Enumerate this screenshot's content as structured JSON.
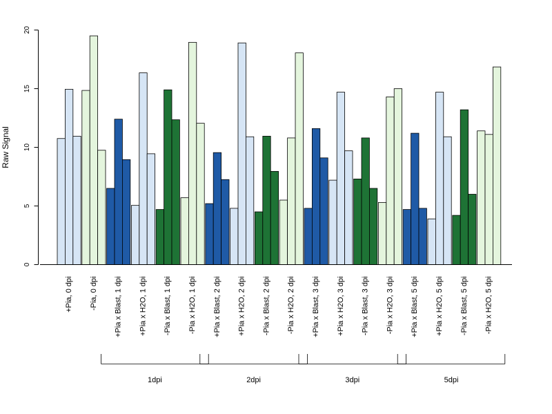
{
  "chart_data": {
    "type": "bar",
    "ylabel": "Raw Signal",
    "ylim": [
      0,
      20
    ],
    "yticks": [
      0,
      5,
      10,
      15,
      20
    ],
    "grid": false,
    "colors": {
      "light_blue": "#d6e5f5",
      "dark_blue": "#1f5aa6",
      "dark_green": "#1e7335",
      "light_green": "#e4f5dd"
    },
    "categories": [
      {
        "label": "+Pia, 0 dpi",
        "color": "light_blue",
        "values": [
          10.75,
          14.95,
          10.95
        ]
      },
      {
        "label": "-Pia, 0 dpi",
        "color": "light_green",
        "values": [
          14.85,
          19.5,
          9.75
        ]
      },
      {
        "label": "+Pia x Blast, 1 dpi",
        "color": "dark_blue",
        "values": [
          6.5,
          12.4,
          8.95
        ]
      },
      {
        "label": "+Pia x H2O, 1 dpi",
        "color": "light_blue",
        "values": [
          5.05,
          16.35,
          9.45
        ]
      },
      {
        "label": "-Pia x Blast, 1 dpi",
        "color": "dark_green",
        "values": [
          4.7,
          14.9,
          12.35
        ]
      },
      {
        "label": "-Pia x H2O, 1 dpi",
        "color": "light_green",
        "values": [
          5.7,
          18.95,
          12.05
        ]
      },
      {
        "label": "+Pia x Blast, 2 dpi",
        "color": "dark_blue",
        "values": [
          5.2,
          9.55,
          7.25
        ]
      },
      {
        "label": "+Pia x H2O, 2 dpi",
        "color": "light_blue",
        "values": [
          4.8,
          18.9,
          10.9
        ]
      },
      {
        "label": "-Pia x Blast, 2 dpi",
        "color": "dark_green",
        "values": [
          4.5,
          10.95,
          7.95
        ]
      },
      {
        "label": "-Pia x H2O, 2 dpi",
        "color": "light_green",
        "values": [
          5.5,
          10.8,
          18.05
        ]
      },
      {
        "label": "+Pia x Blast, 3 dpi",
        "color": "dark_blue",
        "values": [
          4.8,
          11.6,
          9.1
        ]
      },
      {
        "label": "+Pia x H2O, 3 dpi",
        "color": "light_blue",
        "values": [
          7.2,
          14.7,
          9.7
        ]
      },
      {
        "label": "-Pia x Blast, 3 dpi",
        "color": "dark_green",
        "values": [
          7.3,
          10.8,
          6.5
        ]
      },
      {
        "label": "-Pia x H2O, 3 dpi",
        "color": "light_green",
        "values": [
          5.3,
          14.3,
          15.0
        ]
      },
      {
        "label": "+Pia x Blast, 5 dpi",
        "color": "dark_blue",
        "values": [
          4.7,
          11.2,
          4.8
        ]
      },
      {
        "label": "+Pia x H2O, 5 dpi",
        "color": "light_blue",
        "values": [
          3.9,
          14.7,
          10.9
        ]
      },
      {
        "label": "-Pia x Blast, 5 dpi",
        "color": "dark_green",
        "values": [
          4.2,
          13.2,
          6.0
        ]
      },
      {
        "label": "-Pia x H2O, 5 dpi",
        "color": "light_green",
        "values": [
          11.4,
          11.1,
          16.85
        ]
      }
    ],
    "groups": [
      {
        "label": "1dpi",
        "from": 2,
        "to": 5
      },
      {
        "label": "2dpi",
        "from": 6,
        "to": 9
      },
      {
        "label": "3dpi",
        "from": 10,
        "to": 13
      },
      {
        "label": "5dpi",
        "from": 14,
        "to": 17
      }
    ]
  }
}
